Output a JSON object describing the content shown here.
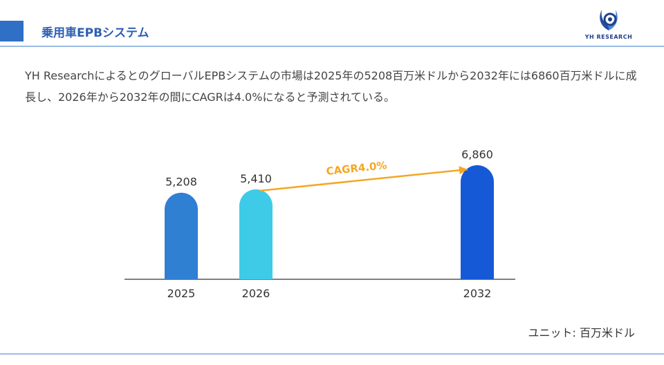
{
  "header": {
    "title": "乗用車EPBシステム",
    "logo_text": "YH RESEARCH"
  },
  "description": "YH ResearchによるとのグローバルEPBシステムの市場は2025年の5208百万米ドルから2032年には6860百万米ドルに成長し、2026年から2032年の間にCAGRは4.0%になると予測されている。",
  "unit_note": "ユニット: 百万米ドル",
  "colors": {
    "accent": "#2f6fc6",
    "bar_2025": "#2f7fd3",
    "bar_2026": "#3ecbe8",
    "bar_2032": "#1659d6",
    "arrow": "#f5a623"
  },
  "chart_data": {
    "type": "bar",
    "categories": [
      "2025",
      "2026",
      "2032"
    ],
    "values": [
      5208,
      5410,
      6860
    ],
    "value_labels": [
      "5,208",
      "5,410",
      "6,860"
    ],
    "annotation": "CAGR4.0%",
    "title": "",
    "xlabel": "",
    "ylabel": ""
  }
}
